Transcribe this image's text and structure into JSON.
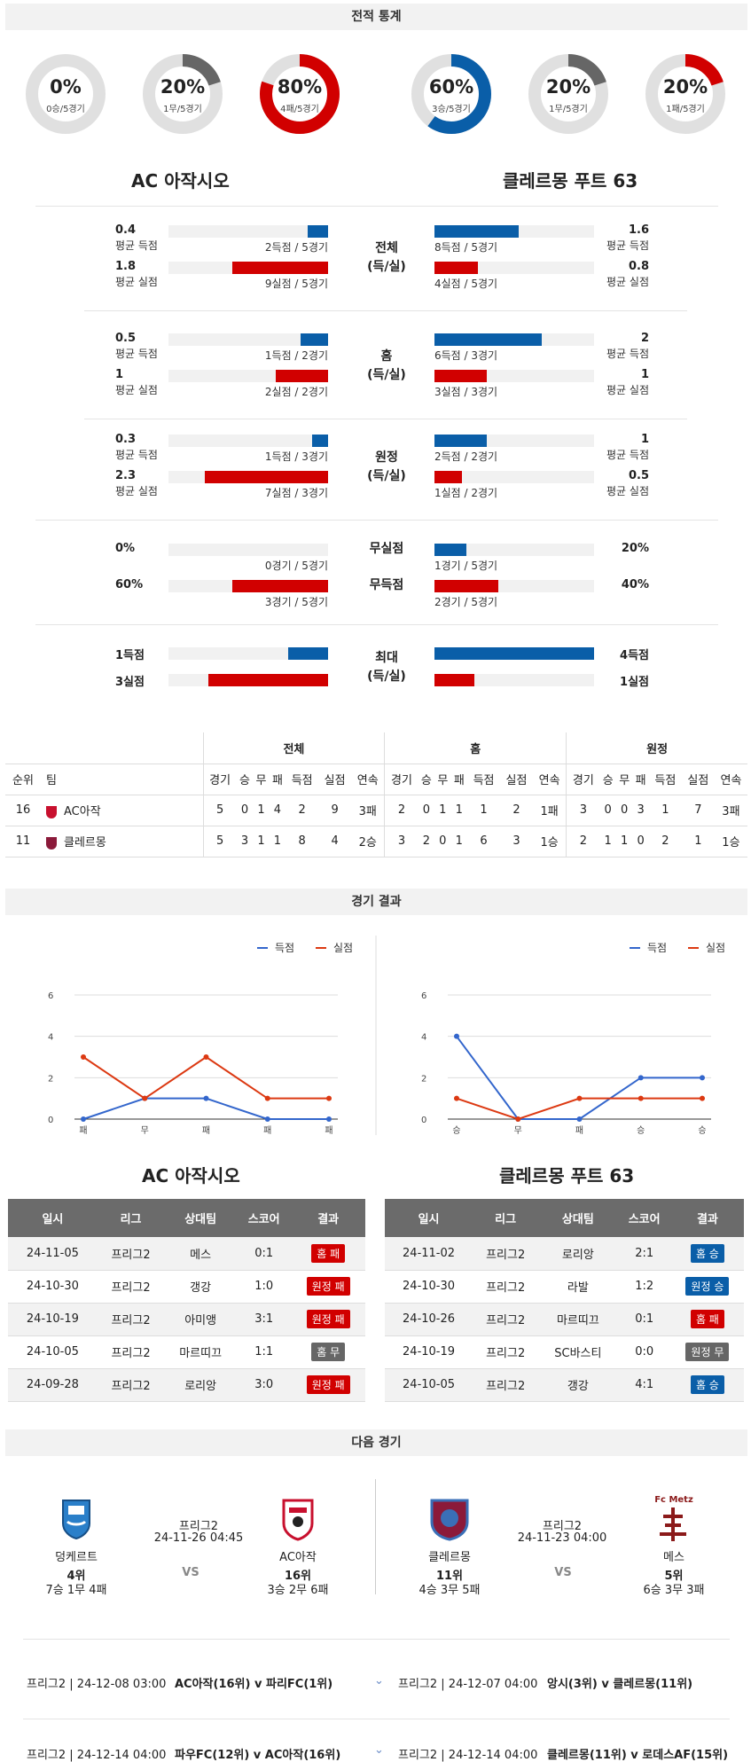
{
  "sections": {
    "stats": "전적 통계",
    "results": "경기 결과",
    "next": "다음 경기"
  },
  "teams": {
    "home": "AC 아작시오",
    "away": "클레르몽 푸트 63"
  },
  "donuts": [
    {
      "pct": "0%",
      "sub": "0승/5경기",
      "value": 0,
      "color": "#666666"
    },
    {
      "pct": "20%",
      "sub": "1무/5경기",
      "value": 0.2,
      "color": "#666666"
    },
    {
      "pct": "80%",
      "sub": "4패/5경기",
      "value": 0.8,
      "color": "#d10000"
    },
    {
      "pct": "60%",
      "sub": "3승/5경기",
      "value": 0.6,
      "color": "#0a5ea8"
    },
    {
      "pct": "20%",
      "sub": "1무/5경기",
      "value": 0.2,
      "color": "#666666"
    },
    {
      "pct": "20%",
      "sub": "1패/5경기",
      "value": 0.2,
      "color": "#d10000"
    }
  ],
  "stat_groups": [
    {
      "label": "전체\n(득/실)",
      "rows": [
        {
          "lv": "0.4",
          "ll": "평균 득점",
          "lt": "2득점 / 5경기",
          "lf": 0.13,
          "lc": "blue",
          "rv": "1.6",
          "rl": "평균 득점",
          "rt": "8득점 / 5경기",
          "rf": 0.53,
          "rc": "blue"
        },
        {
          "lv": "1.8",
          "ll": "평균 실점",
          "lt": "9실점 / 5경기",
          "lf": 0.6,
          "lc": "red",
          "rv": "0.8",
          "rl": "평균 실점",
          "rt": "4실점 / 5경기",
          "rf": 0.27,
          "rc": "red"
        }
      ]
    },
    {
      "label": "홈\n(득/실)",
      "rows": [
        {
          "lv": "0.5",
          "ll": "평균 득점",
          "lt": "1득점 / 2경기",
          "lf": 0.17,
          "lc": "blue",
          "rv": "2",
          "rl": "평균 득점",
          "rt": "6득점 / 3경기",
          "rf": 0.67,
          "rc": "blue"
        },
        {
          "lv": "1",
          "ll": "평균 실점",
          "lt": "2실점 / 2경기",
          "lf": 0.33,
          "lc": "red",
          "rv": "1",
          "rl": "평균 실점",
          "rt": "3실점 / 3경기",
          "rf": 0.33,
          "rc": "red"
        }
      ]
    },
    {
      "label": "원정\n(득/실)",
      "rows": [
        {
          "lv": "0.3",
          "ll": "평균 득점",
          "lt": "1득점 / 3경기",
          "lf": 0.1,
          "lc": "blue",
          "rv": "1",
          "rl": "평균 득점",
          "rt": "2득점 / 2경기",
          "rf": 0.33,
          "rc": "blue"
        },
        {
          "lv": "2.3",
          "ll": "평균 실점",
          "lt": "7실점 / 3경기",
          "lf": 0.77,
          "lc": "red",
          "rv": "0.5",
          "rl": "평균 실점",
          "rt": "1실점 / 2경기",
          "rf": 0.17,
          "rc": "red"
        }
      ]
    }
  ],
  "clean": [
    {
      "label": "무실점",
      "lv": "0%",
      "lt": "0경기 / 5경기",
      "lf": 0,
      "lc": "blue",
      "rv": "20%",
      "rt": "1경기 / 5경기",
      "rf": 0.2,
      "rc": "blue"
    },
    {
      "label": "무득점",
      "lv": "60%",
      "lt": "3경기 / 5경기",
      "lf": 0.6,
      "lc": "red",
      "rv": "40%",
      "rt": "2경기 / 5경기",
      "rf": 0.4,
      "rc": "red"
    }
  ],
  "max": {
    "label": "최대\n(득/실)",
    "rows": [
      {
        "lv": "1득점",
        "lf": 0.25,
        "lc": "blue",
        "rv": "4득점",
        "rf": 1,
        "rc": "blue"
      },
      {
        "lv": "3실점",
        "lf": 0.75,
        "lc": "red",
        "rv": "1실점",
        "rf": 0.25,
        "rc": "red"
      }
    ]
  },
  "standings": {
    "groups": [
      "전체",
      "홈",
      "원정"
    ],
    "cols": [
      "순위",
      "팀",
      "경기",
      "승",
      "무",
      "패",
      "득점",
      "실점",
      "연속",
      "경기",
      "승",
      "무",
      "패",
      "득점",
      "실점",
      "연속",
      "경기",
      "승",
      "무",
      "패",
      "득점",
      "실점",
      "연속"
    ],
    "rows": [
      [
        "16",
        "AC아작",
        "5",
        "0",
        "1",
        "4",
        "2",
        "9",
        "3패",
        "2",
        "0",
        "1",
        "1",
        "1",
        "2",
        "1패",
        "3",
        "0",
        "0",
        "3",
        "1",
        "7",
        "3패"
      ],
      [
        "11",
        "클레르몽",
        "5",
        "3",
        "1",
        "1",
        "8",
        "4",
        "2승",
        "3",
        "2",
        "0",
        "1",
        "6",
        "3",
        "1승",
        "2",
        "1",
        "1",
        "0",
        "2",
        "1",
        "1승"
      ]
    ]
  },
  "legend": {
    "scored": "득점",
    "conceded": "실점"
  },
  "chart_data": [
    {
      "type": "line",
      "x": [
        "패",
        "무",
        "패",
        "패",
        "패"
      ],
      "series": [
        {
          "name": "득점",
          "values": [
            0,
            1,
            1,
            0,
            0
          ],
          "color": "#3366cc"
        },
        {
          "name": "실점",
          "values": [
            3,
            1,
            3,
            1,
            1
          ],
          "color": "#dc3912"
        }
      ],
      "yticks": [
        0,
        2,
        4,
        6
      ],
      "ylim": [
        0,
        6
      ]
    },
    {
      "type": "line",
      "x": [
        "승",
        "무",
        "패",
        "승",
        "승"
      ],
      "series": [
        {
          "name": "득점",
          "values": [
            4,
            0,
            0,
            2,
            2
          ],
          "color": "#3366cc"
        },
        {
          "name": "실점",
          "values": [
            1,
            0,
            1,
            1,
            1
          ],
          "color": "#dc3912"
        }
      ],
      "yticks": [
        0,
        2,
        4,
        6
      ],
      "ylim": [
        0,
        6
      ]
    }
  ],
  "results": {
    "cols": [
      "일시",
      "리그",
      "상대팀",
      "스코어",
      "결과"
    ],
    "home": [
      [
        "24-11-05",
        "프리그2",
        "메스",
        "0:1",
        "홈 패",
        "red"
      ],
      [
        "24-10-30",
        "프리그2",
        "갱강",
        "1:0",
        "원정 패",
        "red"
      ],
      [
        "24-10-19",
        "프리그2",
        "아미앵",
        "3:1",
        "원정 패",
        "red"
      ],
      [
        "24-10-05",
        "프리그2",
        "마르띠끄",
        "1:1",
        "홈 무",
        "gray"
      ],
      [
        "24-09-28",
        "프리그2",
        "로리앙",
        "3:0",
        "원정 패",
        "red"
      ]
    ],
    "away": [
      [
        "24-11-02",
        "프리그2",
        "로리앙",
        "2:1",
        "홈 승",
        "blue"
      ],
      [
        "24-10-30",
        "프리그2",
        "라발",
        "1:2",
        "원정 승",
        "blue"
      ],
      [
        "24-10-26",
        "프리그2",
        "마르띠끄",
        "0:1",
        "홈 패",
        "red"
      ],
      [
        "24-10-19",
        "프리그2",
        "SC바스티",
        "0:0",
        "원정 무",
        "gray"
      ],
      [
        "24-10-05",
        "프리그2",
        "갱강",
        "4:1",
        "홈 승",
        "blue"
      ]
    ]
  },
  "next": {
    "left": {
      "t1": "덩케르트",
      "t1rank": "4위",
      "t1rec": "7승 1무 4패",
      "league": "프리그2",
      "date": "24-11-26 04:45",
      "vs": "VS",
      "t2": "AC아작",
      "t2rank": "16위",
      "t2rec": "3승 2무 6패"
    },
    "right": {
      "t1": "클레르몽",
      "t1rank": "11위",
      "t1rec": "4승 3무 5패",
      "league": "프리그2",
      "date": "24-11-23 04:00",
      "vs": "VS",
      "t2": "메스",
      "t2rank": "5위",
      "t2rec": "6승 3무 3패",
      "logo": "Fc Metz"
    }
  },
  "fixtures": [
    {
      "l1": "프리그2 | 24-12-08 03:00",
      "l2": "AC아작(16위) v 파리FC(1위)",
      "r1": "프리그2 | 24-12-07 04:00",
      "r2": "앙시(3위) v 클레르몽(11위)"
    },
    {
      "l1": "프리그2 | 24-12-14 04:00",
      "l2": "파우FC(12위) v AC아작(16위)",
      "r1": "프리그2 | 24-12-14 04:00",
      "r2": "클레르몽(11위) v 로데스AF(15위)"
    }
  ]
}
